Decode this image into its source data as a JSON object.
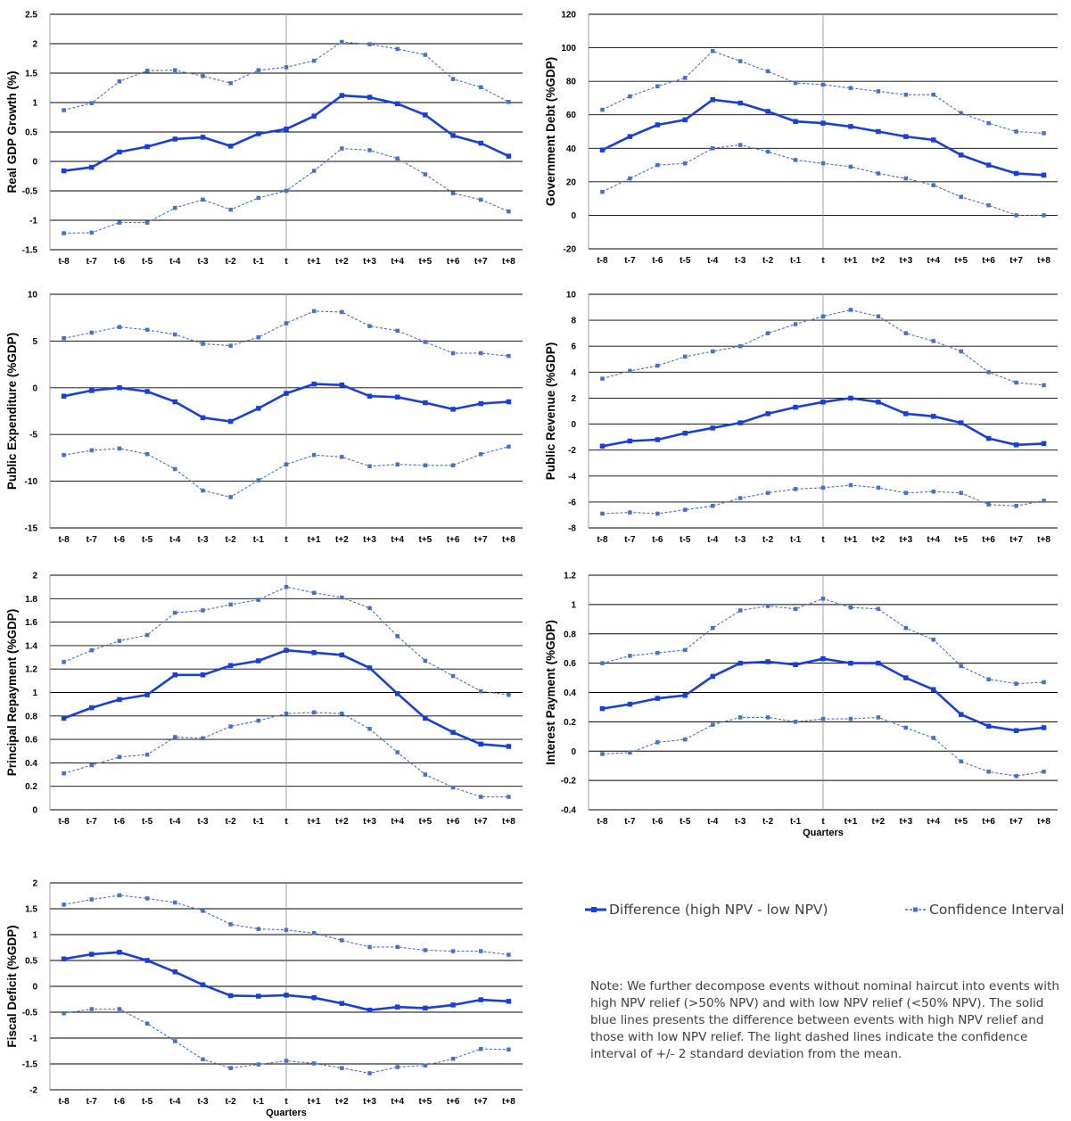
{
  "colors": {
    "solid": "#1a3fd4",
    "dashed": "#4472c4",
    "grid": "#000000",
    "text": "#000000"
  },
  "x_categories": [
    "t-8",
    "t-7",
    "t-6",
    "t-5",
    "t-4",
    "t-3",
    "t-2",
    "t-1",
    "t",
    "t+1",
    "t+2",
    "t+3",
    "t+4",
    "t+5",
    "t+6",
    "t+7",
    "t+8"
  ],
  "legend": {
    "difference": "Difference (high NPV - low NPV)",
    "confidence": "Confidence Interval"
  },
  "note": "Note: We further decompose events without nominal haircut into events with high NPV relief (>50% NPV) and with low NPV relief (<50% NPV). The solid blue lines presents the difference between events with high NPV relief and those with low NPV relief. The light dashed lines indicate the confidence interval of +/- 2 standard deviation from the mean.",
  "chart_data": [
    {
      "type": "line",
      "ylabel": "Real GDP Growth (%)",
      "xlabel": "",
      "ylim": [
        -1.5,
        2.5
      ],
      "yticks": [
        "2.5",
        "2",
        "1.5",
        "1",
        "0.5",
        "0",
        "-0.5",
        "-1",
        "-1.5"
      ],
      "series": [
        {
          "name": "Difference (high NPV - low NPV)",
          "style": "solid",
          "values": [
            -0.16,
            -0.1,
            0.16,
            0.25,
            0.38,
            0.41,
            0.26,
            0.47,
            0.55,
            0.77,
            1.12,
            1.09,
            0.98,
            0.79,
            0.44,
            0.31,
            0.09
          ]
        },
        {
          "name": "Confidence Interval",
          "style": "dashed",
          "values": [
            0.87,
            0.99,
            1.36,
            1.54,
            1.55,
            1.45,
            1.33,
            1.55,
            1.6,
            1.71,
            2.03,
            1.99,
            1.91,
            1.81,
            1.4,
            1.26,
            1.01
          ]
        },
        {
          "name": "Confidence Interval",
          "style": "dashed",
          "values": [
            -1.22,
            -1.21,
            -1.04,
            -1.04,
            -0.79,
            -0.65,
            -0.82,
            -0.62,
            -0.5,
            -0.16,
            0.22,
            0.19,
            0.05,
            -0.22,
            -0.54,
            -0.65,
            -0.85
          ]
        }
      ]
    },
    {
      "type": "line",
      "ylabel": "Government Debt (%GDP)",
      "xlabel": "",
      "ylim": [
        -20,
        120
      ],
      "yticks": [
        "120",
        "100",
        "80",
        "60",
        "40",
        "20",
        "0",
        "-20"
      ],
      "series": [
        {
          "name": "Difference (high NPV - low NPV)",
          "style": "solid",
          "values": [
            39,
            47,
            54,
            57,
            69,
            67,
            62,
            56,
            55,
            53,
            50,
            47,
            45,
            36,
            30,
            25,
            24
          ]
        },
        {
          "name": "Confidence Interval",
          "style": "dashed",
          "values": [
            63,
            71,
            77,
            82,
            98,
            92,
            86,
            79,
            78,
            76,
            74,
            72,
            72,
            61,
            55,
            50,
            49
          ]
        },
        {
          "name": "Confidence Interval",
          "style": "dashed",
          "values": [
            14,
            22,
            30,
            31,
            40,
            42,
            38,
            33,
            31,
            29,
            25,
            22,
            18,
            11,
            6,
            0,
            0
          ]
        }
      ]
    },
    {
      "type": "line",
      "ylabel": "Public Expenditure (%GDP)",
      "xlabel": "",
      "ylim": [
        -15,
        10
      ],
      "yticks": [
        "10",
        "5",
        "0",
        "-5",
        "-10",
        "-15"
      ],
      "series": [
        {
          "name": "Difference (high NPV - low NPV)",
          "style": "solid",
          "values": [
            -0.9,
            -0.3,
            0.0,
            -0.4,
            -1.5,
            -3.2,
            -3.6,
            -2.2,
            -0.6,
            0.4,
            0.3,
            -0.9,
            -1.0,
            -1.6,
            -2.3,
            -1.7,
            -1.5
          ]
        },
        {
          "name": "Confidence Interval",
          "style": "dashed",
          "values": [
            5.3,
            5.9,
            6.5,
            6.2,
            5.7,
            4.7,
            4.5,
            5.4,
            6.9,
            8.2,
            8.1,
            6.6,
            6.1,
            4.9,
            3.7,
            3.7,
            3.4
          ]
        },
        {
          "name": "Confidence Interval",
          "style": "dashed",
          "values": [
            -7.2,
            -6.7,
            -6.5,
            -7.1,
            -8.7,
            -11.0,
            -11.7,
            -9.9,
            -8.2,
            -7.2,
            -7.4,
            -8.4,
            -8.2,
            -8.3,
            -8.3,
            -7.1,
            -6.3
          ]
        }
      ]
    },
    {
      "type": "line",
      "ylabel": "Public Revenue (%GDP)",
      "xlabel": "",
      "ylim": [
        -8,
        10
      ],
      "yticks": [
        "10",
        "8",
        "6",
        "4",
        "2",
        "0",
        "-2",
        "-4",
        "-6",
        "-8"
      ],
      "series": [
        {
          "name": "Difference (high NPV - low NPV)",
          "style": "solid",
          "values": [
            -1.7,
            -1.3,
            -1.2,
            -0.7,
            -0.3,
            0.1,
            0.8,
            1.3,
            1.7,
            2.0,
            1.7,
            0.8,
            0.6,
            0.1,
            -1.1,
            -1.6,
            -1.5
          ]
        },
        {
          "name": "Confidence Interval",
          "style": "dashed",
          "values": [
            3.5,
            4.1,
            4.5,
            5.2,
            5.6,
            6.0,
            7.0,
            7.7,
            8.3,
            8.8,
            8.3,
            7.0,
            6.4,
            5.6,
            4.0,
            3.2,
            3.0
          ]
        },
        {
          "name": "Confidence Interval",
          "style": "dashed",
          "values": [
            -6.9,
            -6.8,
            -6.9,
            -6.6,
            -6.3,
            -5.7,
            -5.3,
            -5.0,
            -4.9,
            -4.7,
            -4.9,
            -5.3,
            -5.2,
            -5.3,
            -6.2,
            -6.3,
            -5.9
          ]
        }
      ]
    },
    {
      "type": "line",
      "ylabel": "Principal Repayment (%GDP)",
      "xlabel": "",
      "ylim": [
        0,
        2
      ],
      "yticks": [
        "2",
        "1.8",
        "1.6",
        "1.4",
        "1.2",
        "1",
        "0.8",
        "0.6",
        "0.4",
        "0.2",
        "0"
      ],
      "series": [
        {
          "name": "Difference (high NPV - low NPV)",
          "style": "solid",
          "values": [
            0.78,
            0.87,
            0.94,
            0.98,
            1.15,
            1.15,
            1.23,
            1.27,
            1.36,
            1.34,
            1.32,
            1.21,
            0.99,
            0.78,
            0.66,
            0.56,
            0.54
          ]
        },
        {
          "name": "Confidence Interval",
          "style": "dashed",
          "values": [
            1.26,
            1.36,
            1.44,
            1.49,
            1.68,
            1.7,
            1.75,
            1.79,
            1.9,
            1.85,
            1.81,
            1.72,
            1.48,
            1.27,
            1.14,
            1.01,
            0.98
          ]
        },
        {
          "name": "Confidence Interval",
          "style": "dashed",
          "values": [
            0.31,
            0.38,
            0.45,
            0.47,
            0.62,
            0.61,
            0.71,
            0.76,
            0.82,
            0.83,
            0.82,
            0.69,
            0.49,
            0.3,
            0.19,
            0.11,
            0.11
          ]
        }
      ]
    },
    {
      "type": "line",
      "ylabel": "Interest Payment (%GDP)",
      "xlabel": "Quarters",
      "ylim": [
        -0.4,
        1.2
      ],
      "yticks": [
        "1.2",
        "1",
        "0.8",
        "0.6",
        "0.4",
        "0.2",
        "0",
        "-0.2",
        "-0.4"
      ],
      "series": [
        {
          "name": "Difference (high NPV - low NPV)",
          "style": "solid",
          "values": [
            0.29,
            0.32,
            0.36,
            0.38,
            0.51,
            0.6,
            0.61,
            0.59,
            0.63,
            0.6,
            0.6,
            0.5,
            0.42,
            0.25,
            0.17,
            0.14,
            0.16
          ]
        },
        {
          "name": "Confidence Interval",
          "style": "dashed",
          "values": [
            0.6,
            0.65,
            0.67,
            0.69,
            0.84,
            0.96,
            0.99,
            0.97,
            1.04,
            0.98,
            0.97,
            0.84,
            0.76,
            0.58,
            0.49,
            0.46,
            0.47
          ]
        },
        {
          "name": "Confidence Interval",
          "style": "dashed",
          "values": [
            -0.02,
            -0.01,
            0.06,
            0.08,
            0.18,
            0.23,
            0.23,
            0.2,
            0.22,
            0.22,
            0.23,
            0.16,
            0.09,
            -0.07,
            -0.14,
            -0.17,
            -0.14
          ]
        }
      ]
    },
    {
      "type": "line",
      "ylabel": "Fiscal Deficit (%GDP)",
      "xlabel": "Quarters",
      "ylim": [
        -2,
        2
      ],
      "yticks": [
        "2",
        "1.5",
        "1",
        "0.5",
        "0",
        "-0.5",
        "-1",
        "-1.5",
        "-2"
      ],
      "series": [
        {
          "name": "Difference (high NPV - low NPV)",
          "style": "solid",
          "values": [
            0.53,
            0.62,
            0.66,
            0.5,
            0.28,
            0.03,
            -0.18,
            -0.19,
            -0.17,
            -0.22,
            -0.33,
            -0.46,
            -0.4,
            -0.42,
            -0.36,
            -0.26,
            -0.29
          ]
        },
        {
          "name": "Confidence Interval",
          "style": "dashed",
          "values": [
            1.58,
            1.68,
            1.76,
            1.7,
            1.62,
            1.46,
            1.2,
            1.11,
            1.09,
            1.03,
            0.89,
            0.76,
            0.76,
            0.7,
            0.68,
            0.68,
            0.61
          ]
        },
        {
          "name": "Confidence Interval",
          "style": "dashed",
          "values": [
            -0.52,
            -0.44,
            -0.44,
            -0.72,
            -1.06,
            -1.41,
            -1.58,
            -1.51,
            -1.44,
            -1.49,
            -1.58,
            -1.68,
            -1.56,
            -1.53,
            -1.4,
            -1.21,
            -1.22
          ]
        }
      ]
    }
  ]
}
